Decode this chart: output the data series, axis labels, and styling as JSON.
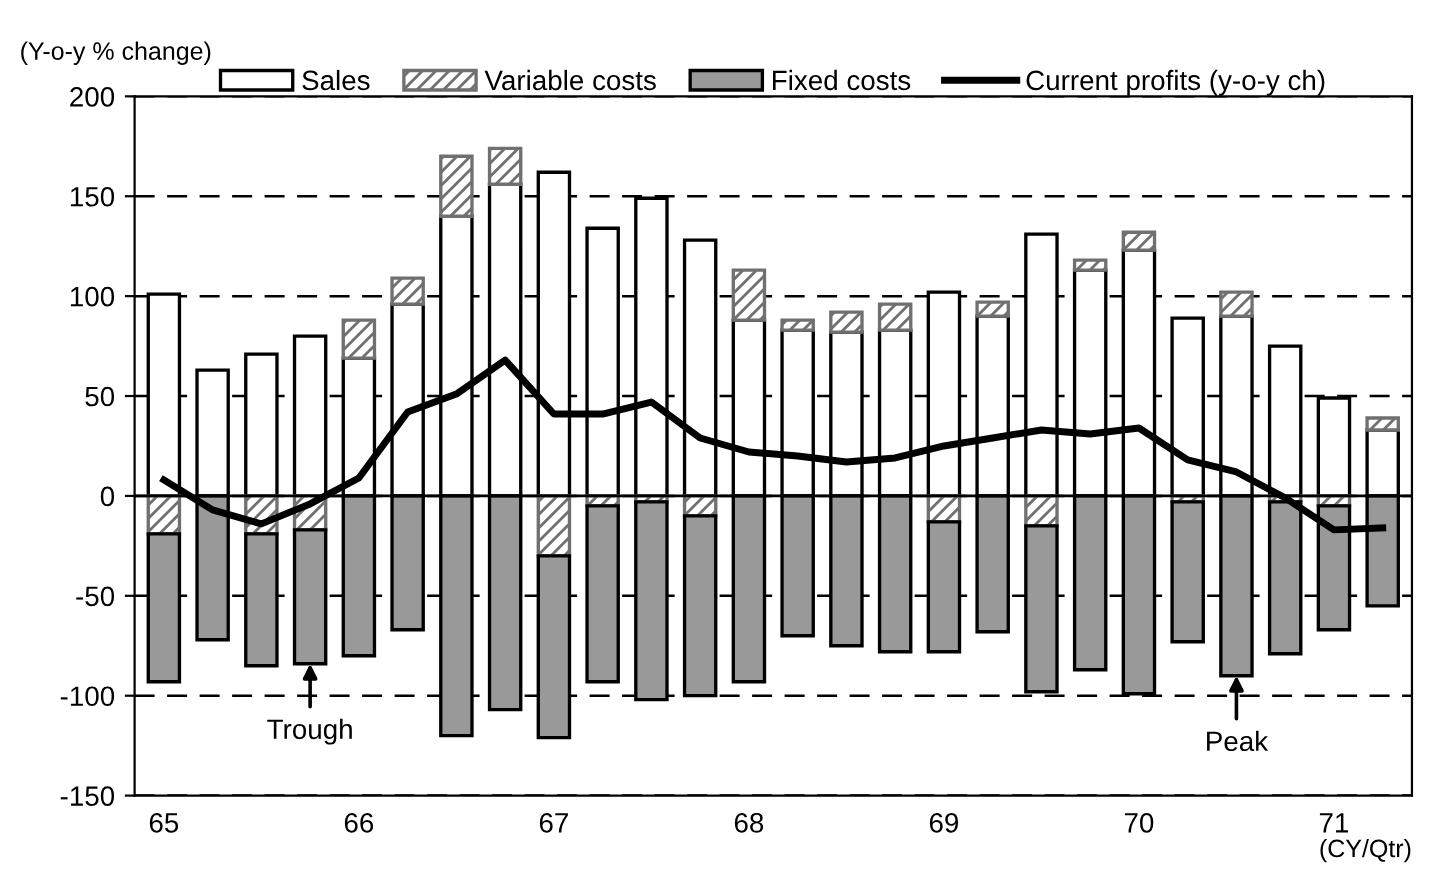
{
  "chart_data": {
    "type": "bar",
    "stacked": true,
    "categories": [
      "65",
      null,
      null,
      null,
      "66",
      null,
      null,
      null,
      "67",
      null,
      null,
      null,
      "68",
      null,
      null,
      null,
      "69",
      null,
      null,
      null,
      "70",
      null,
      null,
      null,
      "71",
      null
    ],
    "series": [
      {
        "name": "Sales",
        "color": "#ffffff",
        "values": [
          101,
          63,
          71,
          80,
          69,
          96,
          140,
          156,
          162,
          134,
          149,
          128,
          88,
          83,
          82,
          83,
          102,
          90,
          131,
          113,
          123,
          89,
          90,
          75,
          49,
          33
        ]
      },
      {
        "name": "Variable costs",
        "color": "#707070",
        "values": [
          -19,
          null,
          -19,
          -17,
          19,
          13,
          30,
          18,
          -30,
          -5,
          -3,
          -10,
          25,
          5,
          10,
          13,
          -13,
          7,
          -15,
          5,
          9,
          -3,
          12,
          -3,
          -5,
          6
        ]
      },
      {
        "name": "Fixed costs",
        "color": "#999999",
        "values": [
          -74,
          -72,
          -66,
          -67,
          -80,
          -67,
          -120,
          -107,
          -91,
          -88,
          -99,
          -90,
          -93,
          -70,
          -75,
          -78,
          -65,
          -68,
          -83,
          -87,
          -99,
          -70,
          -90,
          -76,
          -62,
          -55
        ]
      },
      {
        "name": "Current profits (y-o-y ch)",
        "type": "line",
        "color": "#000000",
        "values": [
          8,
          -7,
          -14,
          -4,
          9,
          42,
          51,
          68,
          41,
          41,
          47,
          29,
          22,
          20,
          17,
          19,
          25,
          29,
          33,
          31,
          34,
          18,
          12,
          -1,
          -17,
          -16
        ]
      }
    ],
    "ylabel": "(Y-o-y % change)",
    "xlabel": "(CY/Qtr)",
    "ylim": [
      -150,
      200
    ],
    "yticks": [
      -150,
      -100,
      -50,
      0,
      50,
      100,
      150,
      200
    ],
    "grid": "y",
    "legend": "top",
    "annotations": [
      {
        "text": "Trough",
        "y": -84
      },
      {
        "text": "Peak",
        "y": -90
      }
    ]
  }
}
